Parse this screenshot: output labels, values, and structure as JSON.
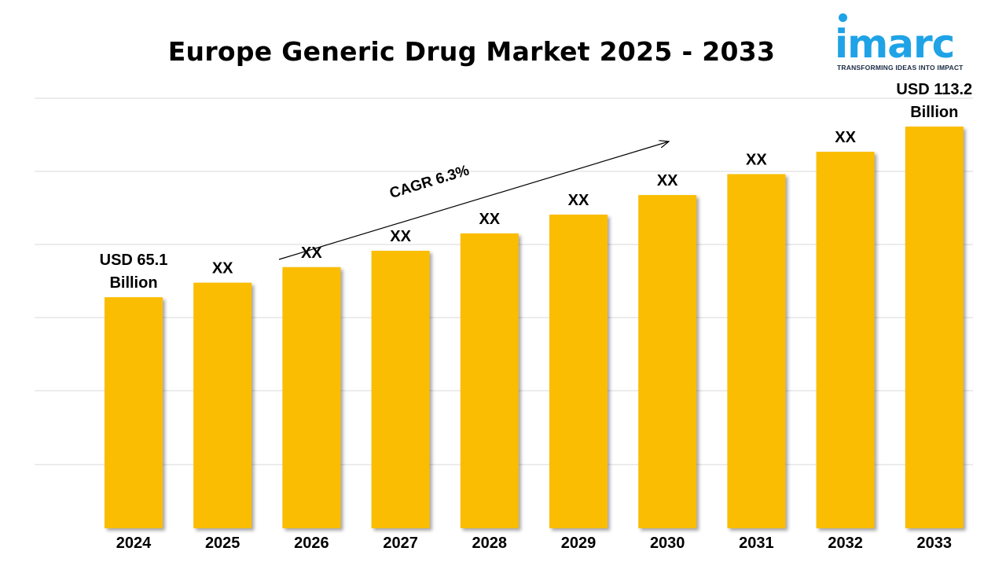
{
  "logo": {
    "word": "imarc",
    "tagline": "TRANSFORMING IDEAS INTO IMPACT"
  },
  "colors": {
    "bar": "#fbbd01",
    "logo": "#1fa3e6"
  },
  "chart_data": {
    "type": "bar",
    "title": "Europe Generic Drug Market 2025 - 2033",
    "xlabel": "",
    "ylabel": "",
    "categories": [
      "2024",
      "2025",
      "2026",
      "2027",
      "2028",
      "2029",
      "2030",
      "2031",
      "2032",
      "2033"
    ],
    "values": [
      65.1,
      69.2,
      73.6,
      78.2,
      83.1,
      88.4,
      93.9,
      99.8,
      106.1,
      113.2
    ],
    "data_labels": [
      [
        "USD 65.1",
        "Billion"
      ],
      [
        "XX"
      ],
      [
        "XX"
      ],
      [
        "XX"
      ],
      [
        "XX"
      ],
      [
        "XX"
      ],
      [
        "XX"
      ],
      [
        "XX"
      ],
      [
        "XX"
      ],
      [
        "USD 113.2",
        "Billion"
      ]
    ],
    "annotation": "CAGR 6.3%",
    "grid": true,
    "legend": "none"
  }
}
